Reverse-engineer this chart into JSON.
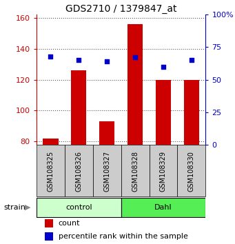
{
  "title": "GDS2710 / 1379847_at",
  "samples": [
    "GSM108325",
    "GSM108326",
    "GSM108327",
    "GSM108328",
    "GSM108329",
    "GSM108330"
  ],
  "counts": [
    82,
    126,
    93,
    156,
    120,
    120
  ],
  "percentiles": [
    68,
    65,
    64,
    67,
    60,
    65
  ],
  "ylim_left": [
    78,
    162
  ],
  "ylim_right": [
    0,
    100
  ],
  "yticks_left": [
    80,
    100,
    120,
    140,
    160
  ],
  "yticks_right": [
    0,
    25,
    50,
    75,
    100
  ],
  "ytick_labels_right": [
    "0",
    "25",
    "50",
    "75",
    "100%"
  ],
  "bar_color": "#cc0000",
  "dot_color": "#0000cc",
  "grid_color": "#888888",
  "groups": [
    {
      "label": "control",
      "indices": [
        0,
        1,
        2
      ],
      "color": "#ccffcc"
    },
    {
      "label": "Dahl",
      "indices": [
        3,
        4,
        5
      ],
      "color": "#55ee55"
    }
  ],
  "strain_label": "strain",
  "legend_count_label": "count",
  "legend_pct_label": "percentile rank within the sample",
  "bar_bottom": 78,
  "bar_width": 0.55,
  "sample_box_color": "#cccccc",
  "bg_color": "#ffffff"
}
